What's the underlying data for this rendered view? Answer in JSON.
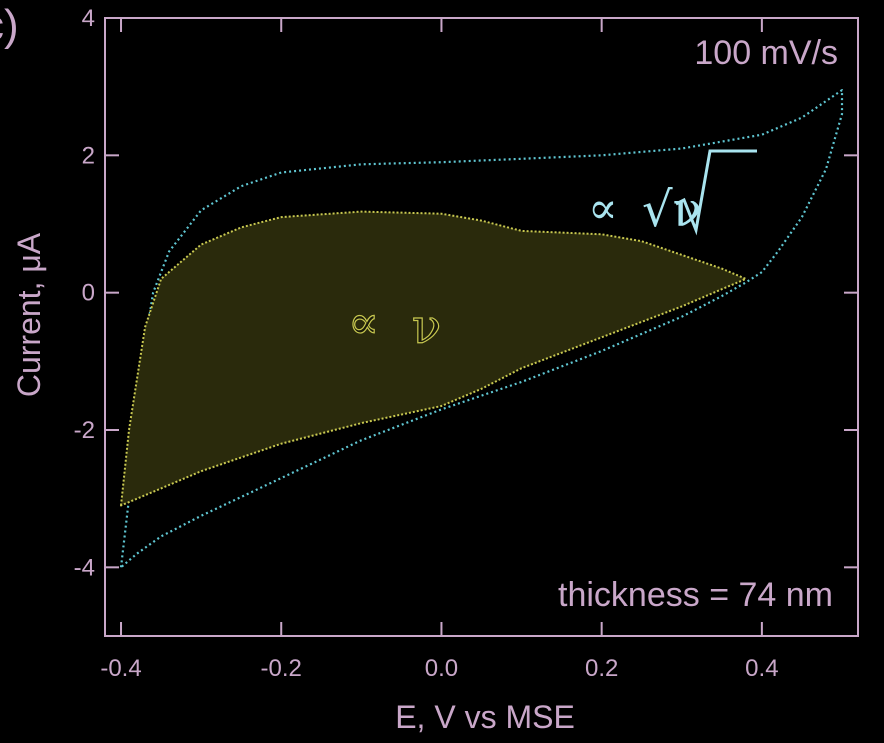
{
  "panel_label": "c)",
  "colors": {
    "frame": "#c9a7c9",
    "outer_curve": "#5fc6d2",
    "inner_curve": "#c8c850",
    "inner_fill": "#2a2a0c",
    "background": "#000000"
  },
  "chart_data": {
    "type": "line",
    "title": "",
    "xlabel": "E, V vs MSE",
    "ylabel": "Current, μA",
    "xlim": [
      -0.42,
      0.52
    ],
    "ylim": [
      -5.0,
      4.0
    ],
    "x_ticks": [
      -0.4,
      -0.2,
      0.0,
      0.2,
      0.4
    ],
    "x_tick_labels": [
      "-0.4",
      "-0.2",
      "0.0",
      "0.2",
      "0.4"
    ],
    "y_ticks": [
      -4,
      -2,
      0,
      2,
      4
    ],
    "y_tick_labels": [
      "-4",
      "-2",
      "0",
      "2",
      "4"
    ],
    "grid": false,
    "annotations": {
      "scan_rate": "100 mV/s",
      "thickness": "thickness = 74 nm",
      "outer_prop_symbol": "∝",
      "outer_prop_var": "√ν",
      "inner_prop_symbol": "∝",
      "inner_prop_var": "ν"
    },
    "series": [
      {
        "style": "dotted-outline",
        "x": [
          -0.4,
          -0.39,
          -0.38,
          -0.36,
          -0.34,
          -0.3,
          -0.25,
          -0.2,
          -0.1,
          0.0,
          0.1,
          0.2,
          0.3,
          0.35,
          0.4,
          0.45,
          0.5,
          0.5,
          0.48,
          0.45,
          0.42,
          0.4,
          0.38,
          0.35,
          0.3,
          0.2,
          0.1,
          0.0,
          -0.1,
          -0.2,
          -0.3,
          -0.35,
          -0.38,
          -0.4
        ],
        "y": [
          -4.0,
          -3.0,
          -1.5,
          0.0,
          0.6,
          1.2,
          1.55,
          1.75,
          1.87,
          1.9,
          1.95,
          2.0,
          2.1,
          2.2,
          2.3,
          2.55,
          2.95,
          2.6,
          1.8,
          1.1,
          0.6,
          0.3,
          0.15,
          -0.05,
          -0.35,
          -0.85,
          -1.3,
          -1.7,
          -2.15,
          -2.7,
          -3.25,
          -3.55,
          -3.8,
          -4.0
        ]
      },
      {
        "style": "filled-loop",
        "x": [
          -0.4,
          -0.39,
          -0.37,
          -0.35,
          -0.3,
          -0.25,
          -0.2,
          -0.1,
          0.0,
          0.05,
          0.1,
          0.2,
          0.25,
          0.3,
          0.35,
          0.38,
          0.35,
          0.3,
          0.2,
          0.1,
          0.05,
          0.0,
          -0.1,
          -0.2,
          -0.3,
          -0.35,
          -0.4
        ],
        "y": [
          -3.1,
          -2.0,
          -0.5,
          0.2,
          0.7,
          0.95,
          1.1,
          1.18,
          1.15,
          1.05,
          0.9,
          0.85,
          0.75,
          0.55,
          0.35,
          0.2,
          0.05,
          -0.2,
          -0.65,
          -1.1,
          -1.4,
          -1.65,
          -1.9,
          -2.2,
          -2.6,
          -2.85,
          -3.1
        ]
      }
    ]
  }
}
